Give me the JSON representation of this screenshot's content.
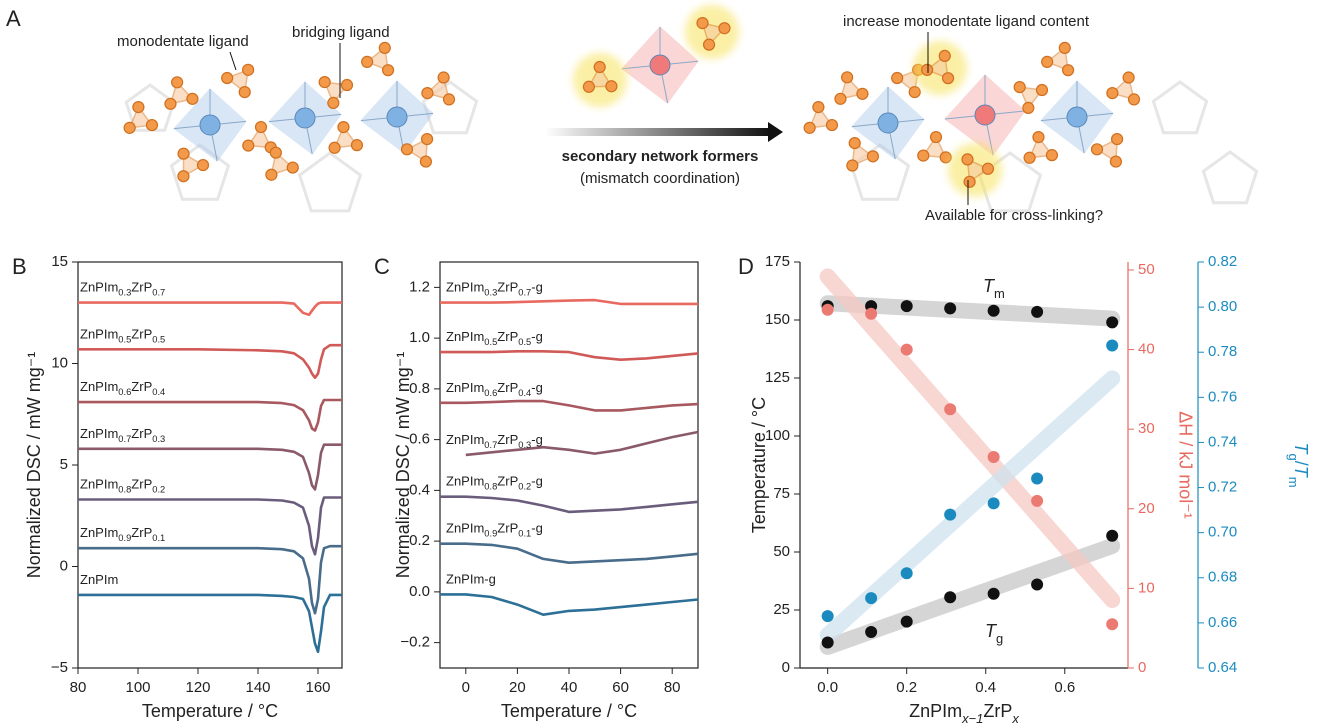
{
  "diagram": {
    "panel": "A",
    "labels": {
      "monodentate": "monodentate ligand",
      "bridging": "bridging ligand",
      "formers": "secondary network formers",
      "mismatch": "(mismatch coordination)",
      "increase": "increase monodentate ligand content",
      "available": "Available for cross-linking?"
    }
  },
  "chart_data": [
    {
      "panel": "B",
      "type": "line",
      "xlabel": "Temperature / °C",
      "ylabel": "Normalized DSC / mW mg⁻¹",
      "x": [
        80,
        100,
        120,
        140,
        148,
        152,
        155,
        157,
        158,
        159,
        160,
        161,
        162,
        164,
        168
      ],
      "xlim": [
        80,
        168
      ],
      "xticks": [
        80,
        100,
        120,
        140,
        160
      ],
      "ylim": [
        -5,
        15
      ],
      "yticks": [
        {
          "value": -5,
          "label": "−5"
        },
        0,
        5,
        10,
        15
      ],
      "series": [
        {
          "name": "ZnPIm0.3ZrP0.7",
          "color": "#e8695f",
          "values": [
            13.0,
            13.0,
            13.0,
            13.0,
            13.0,
            12.95,
            12.5,
            12.4,
            12.6,
            12.8,
            12.95,
            13.0,
            13.0,
            13.0,
            13.0
          ]
        },
        {
          "name": "ZnPIm0.5ZrP0.5",
          "color": "#d05a57",
          "values": [
            10.7,
            10.7,
            10.7,
            10.65,
            10.6,
            10.5,
            10.2,
            9.8,
            9.5,
            9.3,
            9.5,
            10.2,
            10.7,
            10.9,
            10.9
          ]
        },
        {
          "name": "ZnPIm0.6ZrP0.4",
          "color": "#a8585f",
          "values": [
            8.1,
            8.1,
            8.1,
            8.1,
            8.05,
            7.95,
            7.7,
            7.2,
            6.8,
            6.7,
            7.1,
            7.9,
            8.2,
            8.2,
            8.2
          ]
        },
        {
          "name": "ZnPIm0.7ZrP0.3",
          "color": "#8a5a6b",
          "values": [
            5.8,
            5.8,
            5.8,
            5.8,
            5.75,
            5.65,
            5.4,
            4.6,
            4.0,
            3.8,
            4.5,
            5.6,
            6.0,
            6.0,
            6.0
          ]
        },
        {
          "name": "ZnPIm0.8ZrP0.2",
          "color": "#6a5d7c",
          "values": [
            3.3,
            3.3,
            3.3,
            3.3,
            3.25,
            3.15,
            2.9,
            2.0,
            1.0,
            0.6,
            1.4,
            2.9,
            3.4,
            3.4,
            3.4
          ]
        },
        {
          "name": "ZnPIm0.9ZrP0.1",
          "color": "#486c8a",
          "values": [
            0.9,
            0.9,
            0.9,
            0.9,
            0.85,
            0.75,
            0.4,
            -0.6,
            -1.8,
            -2.3,
            -1.6,
            0.2,
            0.9,
            1.0,
            1.0
          ]
        },
        {
          "name": "ZnPIm",
          "color": "#2c6f97",
          "values": [
            -1.4,
            -1.4,
            -1.4,
            -1.4,
            -1.45,
            -1.5,
            -1.6,
            -2.2,
            -3.0,
            -3.8,
            -4.2,
            -3.2,
            -2.0,
            -1.4,
            -1.4
          ]
        }
      ]
    },
    {
      "panel": "C",
      "type": "line",
      "xlabel": "Temperature / °C",
      "ylabel": "Normalized DSC / mW mg⁻¹",
      "x": [
        -10,
        0,
        10,
        20,
        30,
        40,
        50,
        60,
        70,
        80,
        90
      ],
      "xlim": [
        -10,
        90
      ],
      "xticks": [
        0,
        20,
        40,
        60,
        80
      ],
      "ylim": [
        -0.3,
        1.3
      ],
      "yticks": [
        {
          "value": -0.2,
          "label": "−0.2"
        },
        {
          "value": 0,
          "label": "0.0"
        },
        0.2,
        0.4,
        0.6,
        0.8,
        {
          "value": 1,
          "label": "1.0"
        },
        1.2
      ],
      "series": [
        {
          "name": "ZnPIm0.3ZrP0.7-g",
          "color": "#e8695f",
          "values": [
            1.14,
            1.14,
            1.14,
            1.142,
            1.145,
            1.148,
            1.15,
            1.135,
            1.135,
            1.135,
            1.135
          ]
        },
        {
          "name": "ZnPIm0.5ZrP0.5-g",
          "color": "#d05a57",
          "values": [
            0.945,
            0.945,
            0.945,
            0.948,
            0.948,
            0.945,
            0.925,
            0.915,
            0.92,
            0.93,
            0.94
          ]
        },
        {
          "name": "ZnPIm0.6ZrP0.4-g",
          "color": "#a8585f",
          "values": [
            0.745,
            0.745,
            0.748,
            0.752,
            0.752,
            0.735,
            0.715,
            0.715,
            0.725,
            0.735,
            0.74
          ]
        },
        {
          "name": "ZnPIm0.7ZrP0.3-g",
          "color": "#8a5a6b",
          "values": [
            null,
            0.54,
            0.55,
            0.56,
            0.57,
            0.56,
            0.545,
            0.56,
            0.585,
            0.61,
            0.63
          ]
        },
        {
          "name": "ZnPIm0.8ZrP0.2-g",
          "color": "#6a5d7c",
          "values": [
            0.375,
            0.375,
            0.37,
            0.36,
            0.34,
            0.315,
            0.32,
            0.325,
            0.335,
            0.345,
            0.355
          ]
        },
        {
          "name": "ZnPIm0.9ZrP0.1-g",
          "color": "#486c8a",
          "values": [
            0.19,
            0.19,
            0.185,
            0.17,
            0.13,
            0.115,
            0.12,
            0.125,
            0.13,
            0.14,
            0.15
          ]
        },
        {
          "name": "ZnPIm-g",
          "color": "#2c6f97",
          "values": [
            -0.01,
            -0.01,
            -0.02,
            -0.05,
            -0.09,
            -0.075,
            -0.07,
            -0.06,
            -0.05,
            -0.04,
            -0.03
          ]
        }
      ]
    },
    {
      "panel": "D",
      "type": "scatter",
      "xlabel": "ZnPImx−1ZrPx",
      "ylabel": "Temperature / °C",
      "y2label": "ΔH / kJ mol⁻¹",
      "y3label": "Tg/Tm",
      "x": [
        0,
        0.11,
        0.2,
        0.31,
        0.42,
        0.53,
        0.72
      ],
      "xlim": [
        -0.07,
        0.76
      ],
      "xticks": [
        {
          "value": 0,
          "label": "0.0"
        },
        0.2,
        0.4,
        0.6
      ],
      "ylim": [
        0,
        175
      ],
      "yticks": [
        0,
        25,
        50,
        75,
        100,
        125,
        150,
        175
      ],
      "y2lim": [
        0,
        51
      ],
      "y2ticks": [
        0,
        10,
        20,
        30,
        40,
        50
      ],
      "y2color": "#e8695f",
      "y3lim": [
        0.64,
        0.82
      ],
      "y3ticks": [
        0.64,
        0.66,
        0.68,
        {
          "value": 0.7,
          "label": "0.70"
        },
        0.72,
        0.74,
        0.76,
        0.78,
        {
          "value": 0.8,
          "label": "0.80"
        },
        0.82
      ],
      "y3color": "#1b8bbf",
      "series": [
        {
          "name": "Tm",
          "color": "#111111",
          "fit_color": "#c8c8c8",
          "values": [
            156,
            156,
            156,
            155,
            154,
            153.5,
            149
          ]
        },
        {
          "name": "Tg",
          "color": "#111111",
          "fit_color": "#c8c8c8",
          "values": [
            11,
            15.5,
            20,
            30.5,
            32,
            36,
            57
          ]
        },
        {
          "color": "#ea7a72",
          "fit_color": "#f6c9c4",
          "axis": "y2",
          "values": [
            45,
            44.5,
            40,
            32.5,
            26.5,
            21,
            5.5
          ]
        },
        {
          "color": "#1b8bbf",
          "fit_color": "#cfe2ef",
          "axis": "y3",
          "values": [
            0.663,
            0.671,
            0.682,
            0.708,
            0.713,
            0.724,
            0.783
          ]
        }
      ]
    }
  ]
}
